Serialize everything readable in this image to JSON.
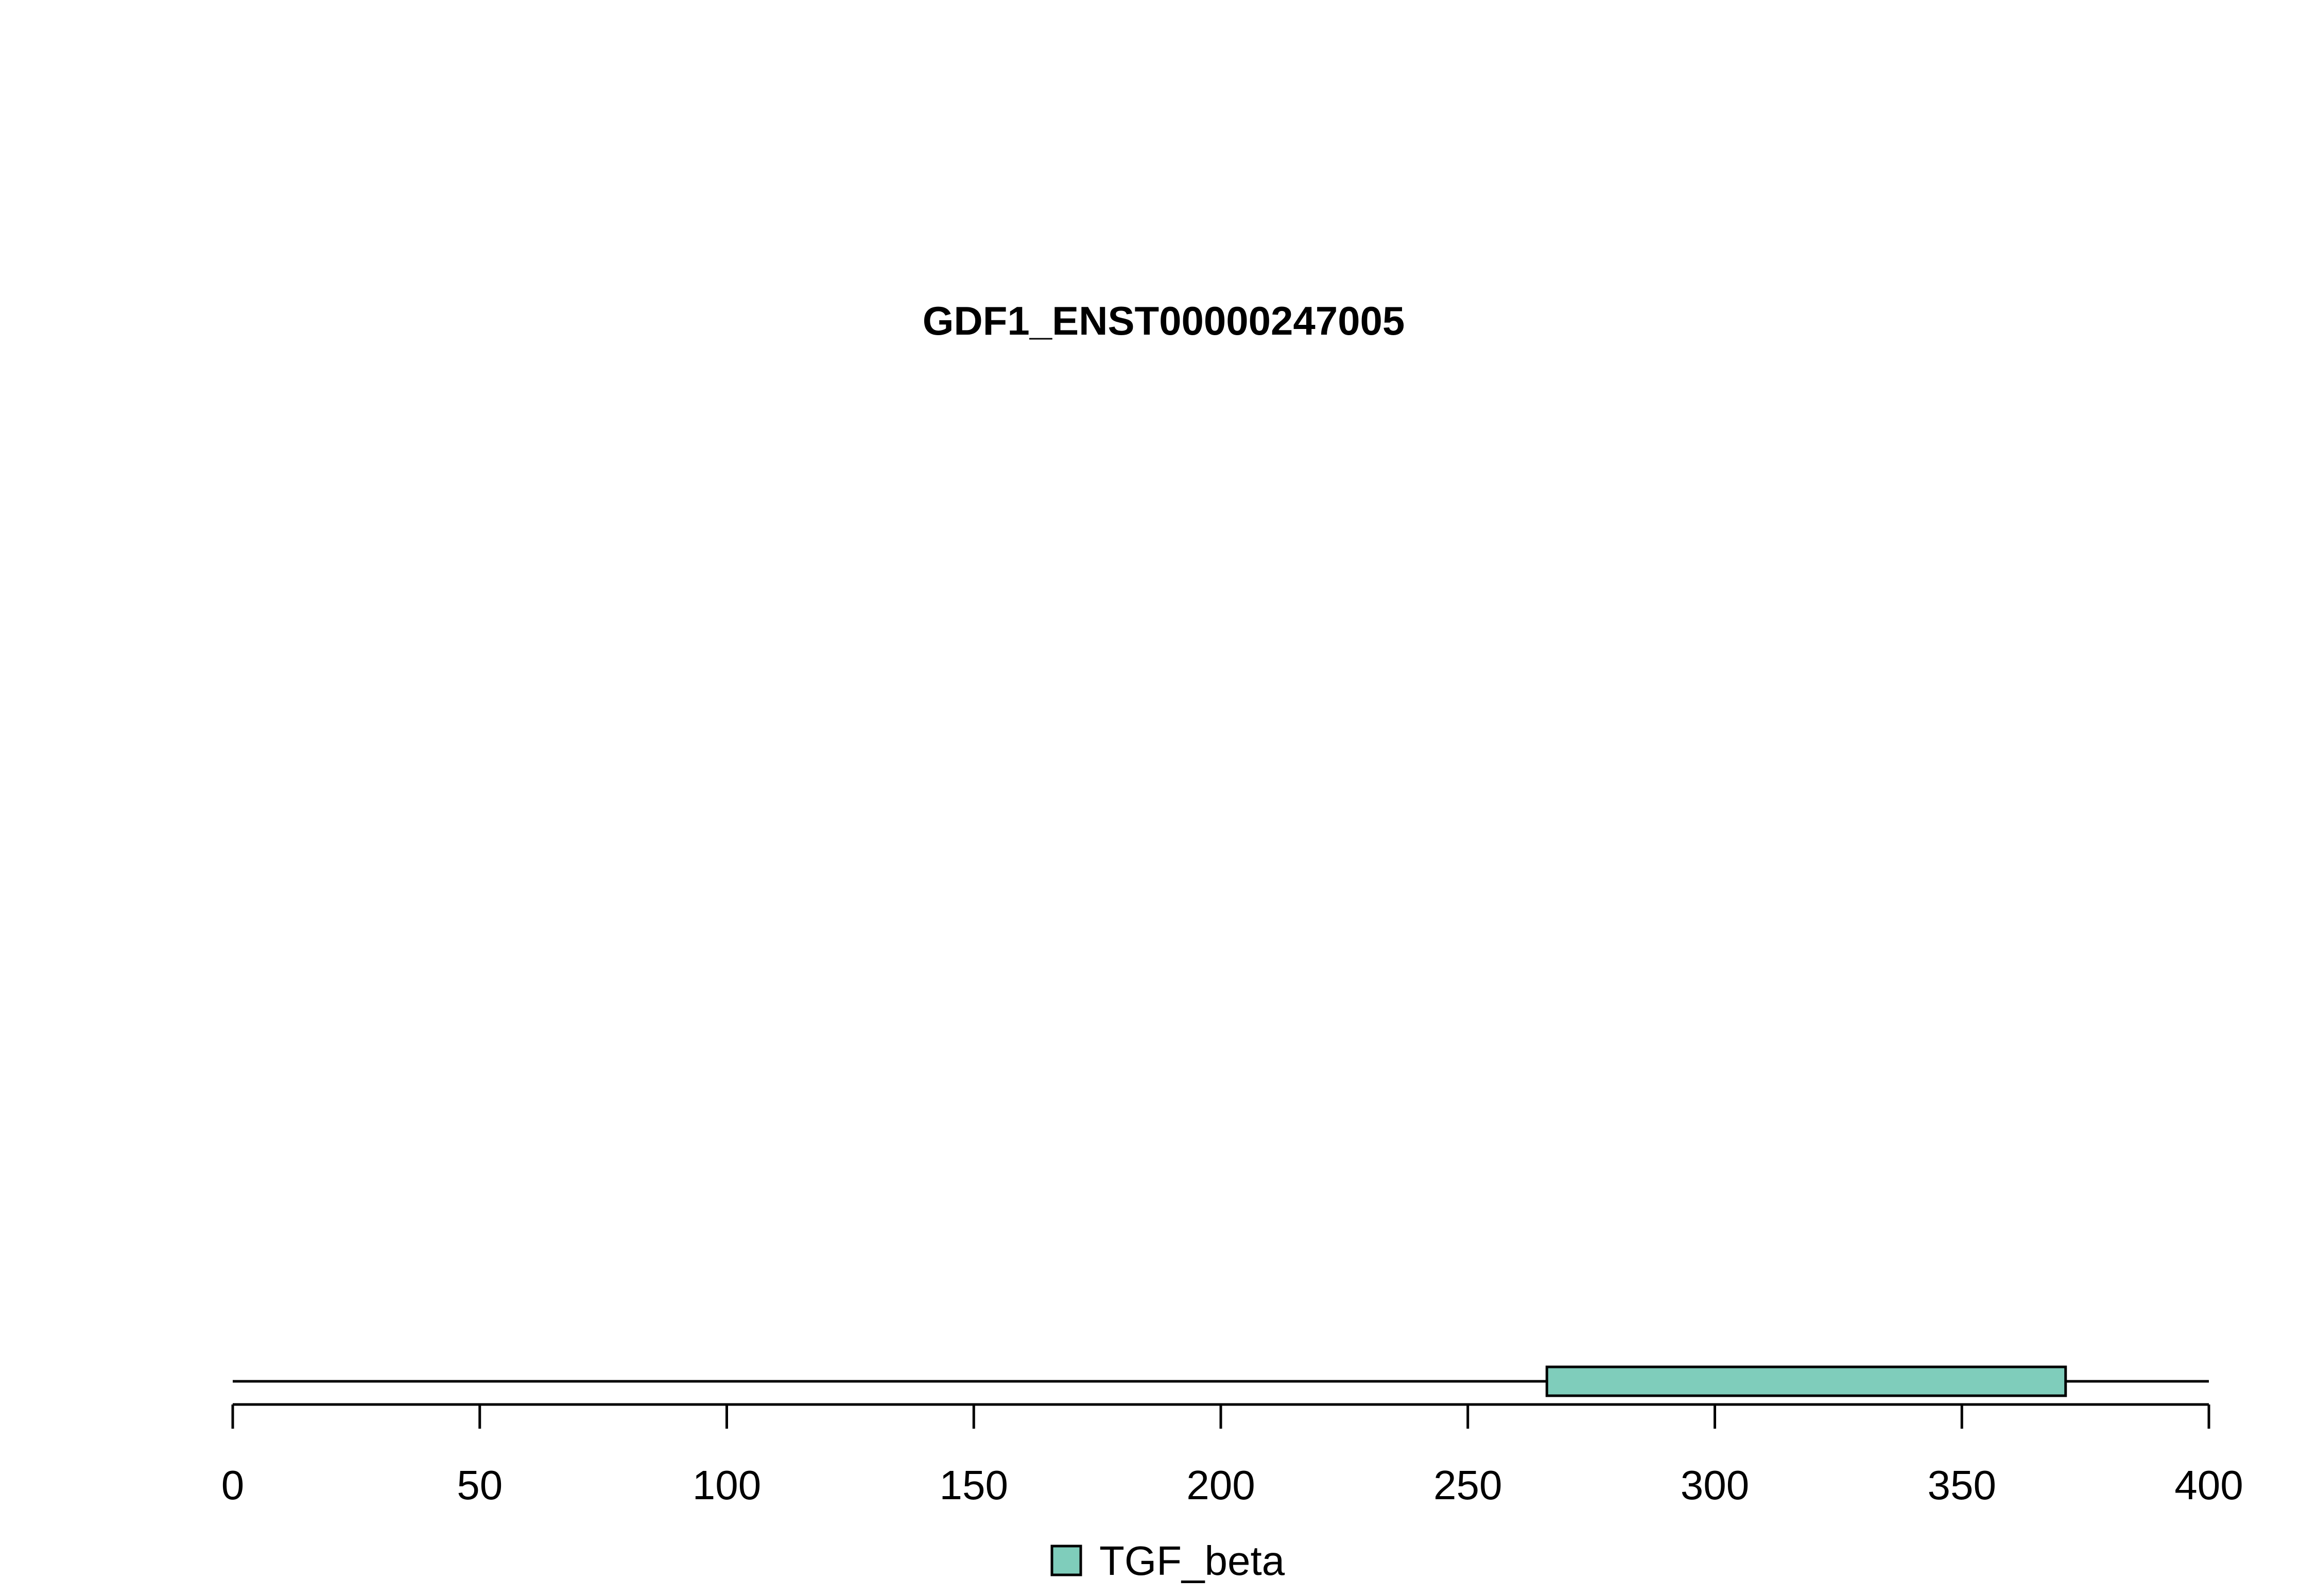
{
  "chart_data": {
    "type": "domain-track",
    "title": "GDF1_ENST00000247005",
    "protein_length": 400,
    "xlim": [
      0,
      400
    ],
    "x_ticks": [
      0,
      50,
      100,
      150,
      200,
      250,
      300,
      350,
      400
    ],
    "x_tick_labels": [
      "0",
      "50",
      "100",
      "150",
      "200",
      "250",
      "300",
      "350",
      "400"
    ],
    "domains": [
      {
        "name": "TGF_beta",
        "start": 266,
        "end": 371,
        "color": "#7fcdbb"
      }
    ],
    "legend": {
      "position": "bottom-center",
      "entries": [
        {
          "label": "TGF_beta",
          "color": "#7fcdbb"
        }
      ]
    },
    "grid": false
  }
}
